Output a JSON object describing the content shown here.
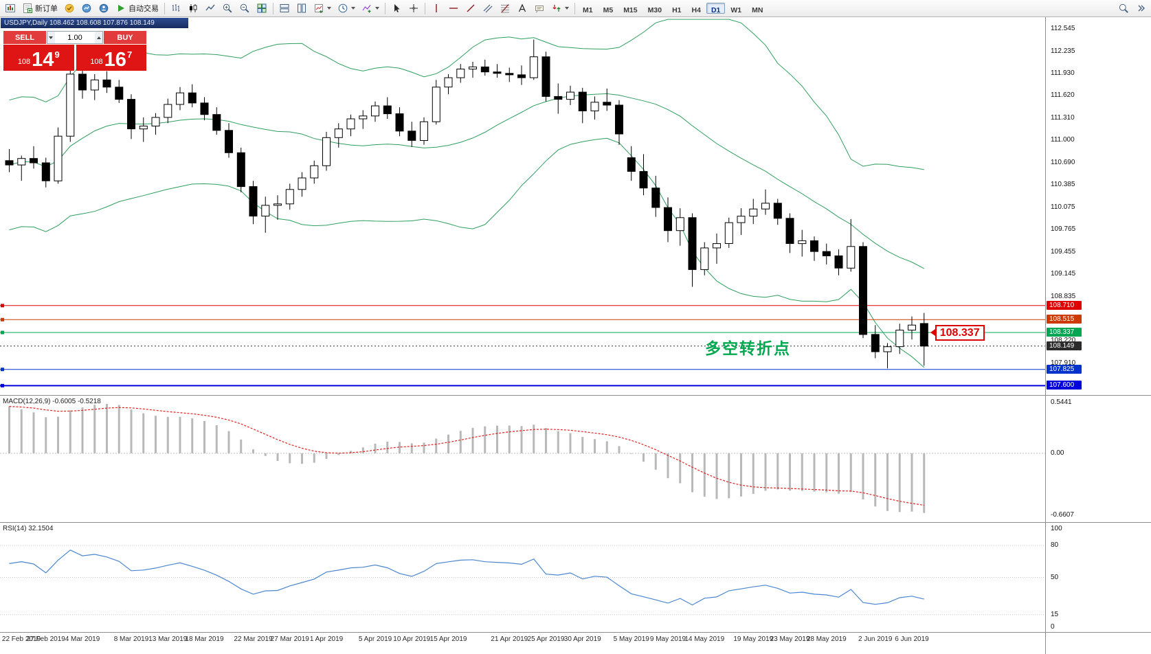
{
  "toolbar": {
    "new_order": "新订单",
    "autotrade": "自动交易",
    "timeframes": [
      "M1",
      "M5",
      "M15",
      "M30",
      "H1",
      "H4",
      "D1",
      "W1",
      "MN"
    ],
    "active_timeframe": "D1"
  },
  "chart": {
    "title_bar": "USDJPY,Daily  108.462 108.608 107.876 108.149"
  },
  "trade_panel": {
    "sell_label": "SELL",
    "buy_label": "BUY",
    "volume": "1.00",
    "sell_price_small": "108",
    "sell_price_big": "14",
    "sell_price_sup": "9",
    "buy_price_small": "108",
    "buy_price_big": "16",
    "buy_price_sup": "7"
  },
  "annotations": {
    "turning_point": "多空转折点",
    "price_callout": "108.337"
  },
  "panels": {
    "macd": "MACD(12,26,9) -0.6005 -0.5218",
    "rsi": "RSI(14) 32.1504"
  },
  "chart_data": {
    "type": "candlestick",
    "symbol": "USDJPY",
    "period": "Daily",
    "quote": {
      "open": 108.462,
      "high": 108.608,
      "low": 107.876,
      "close": 108.149
    },
    "price_range": [
      107.47,
      112.7
    ],
    "price_axis_ticks": [
      "112.545",
      "112.235",
      "111.930",
      "111.620",
      "111.310",
      "111.000",
      "110.690",
      "110.385",
      "110.075",
      "109.765",
      "109.455",
      "109.145",
      "108.835",
      "108.220",
      "107.910"
    ],
    "levels": [
      {
        "price": 108.71,
        "label": "108.710",
        "color": "#e00000",
        "style": "solid",
        "width": 1
      },
      {
        "price": 108.515,
        "label": "108.515",
        "color": "#cc3a00",
        "style": "solid",
        "width": 1
      },
      {
        "price": 108.337,
        "label": "108.337",
        "color": "#00a651",
        "style": "solid",
        "width": 1
      },
      {
        "price": 108.149,
        "label": "108.149",
        "color": "#2b2b2b",
        "style": "dotted",
        "width": 1,
        "current": true
      },
      {
        "price": 107.825,
        "label": "107.825",
        "color": "#0033cc",
        "style": "solid",
        "width": 1
      },
      {
        "price": 107.6,
        "label": "107.600",
        "color": "#0000dd",
        "style": "solid",
        "width": 2
      }
    ],
    "bollinger": {
      "period": 20,
      "deviation": 2,
      "color": "#2e9e5e"
    },
    "macd": {
      "params": "12,26,9",
      "value": -0.6005,
      "signal": -0.5218,
      "axis": [
        "0.5441",
        "0.00",
        "-0.6607"
      ],
      "histogram_color": "#b8b8b8",
      "signal_color": "#e02020"
    },
    "rsi": {
      "period": 14,
      "value": 32.1504,
      "axis": [
        "100",
        "80",
        "50",
        "15",
        "0"
      ],
      "levels": [
        80,
        50,
        15
      ],
      "color": "#4a86d0"
    },
    "time_labels": [
      {
        "text": "22 Feb 2019",
        "i": 0
      },
      {
        "text": "27 Feb 2019",
        "i": 3
      },
      {
        "text": "4 Mar 2019",
        "i": 6
      },
      {
        "text": "8 Mar 2019",
        "i": 10
      },
      {
        "text": "13 Mar 2019",
        "i": 13
      },
      {
        "text": "18 Mar 2019",
        "i": 16
      },
      {
        "text": "22 Mar 2019",
        "i": 20
      },
      {
        "text": "27 Mar 2019",
        "i": 23
      },
      {
        "text": "1 Apr 2019",
        "i": 26
      },
      {
        "text": "5 Apr 2019",
        "i": 30
      },
      {
        "text": "10 Apr 2019",
        "i": 33
      },
      {
        "text": "15 Apr 2019",
        "i": 36
      },
      {
        "text": "21 Apr 2019",
        "i": 41
      },
      {
        "text": "25 Apr 2019",
        "i": 44
      },
      {
        "text": "30 Apr 2019",
        "i": 47
      },
      {
        "text": "5 May 2019",
        "i": 51
      },
      {
        "text": "9 May 2019",
        "i": 54
      },
      {
        "text": "14 May 2019",
        "i": 57
      },
      {
        "text": "19 May 2019",
        "i": 61
      },
      {
        "text": "23 May 2019",
        "i": 64
      },
      {
        "text": "28 May 2019",
        "i": 67
      },
      {
        "text": "2 Jun 2019",
        "i": 71
      },
      {
        "text": "6 Jun 2019",
        "i": 74
      }
    ],
    "ohlc": [
      [
        110.72,
        110.88,
        110.56,
        110.66
      ],
      [
        110.66,
        110.79,
        110.44,
        110.75
      ],
      [
        110.75,
        110.92,
        110.61,
        110.69
      ],
      [
        110.69,
        110.76,
        110.35,
        110.44
      ],
      [
        110.44,
        111.18,
        110.4,
        111.06
      ],
      [
        111.06,
        112.08,
        110.98,
        111.92
      ],
      [
        111.92,
        112.1,
        111.58,
        111.7
      ],
      [
        111.7,
        111.92,
        111.56,
        111.84
      ],
      [
        111.84,
        111.96,
        111.66,
        111.74
      ],
      [
        111.74,
        111.84,
        111.52,
        111.57
      ],
      [
        111.57,
        111.64,
        111.02,
        111.16
      ],
      [
        111.16,
        111.32,
        110.98,
        111.2
      ],
      [
        111.2,
        111.38,
        111.08,
        111.32
      ],
      [
        111.32,
        111.58,
        111.24,
        111.5
      ],
      [
        111.5,
        111.74,
        111.42,
        111.66
      ],
      [
        111.66,
        111.78,
        111.46,
        111.52
      ],
      [
        111.52,
        111.6,
        111.28,
        111.36
      ],
      [
        111.36,
        111.46,
        111.08,
        111.14
      ],
      [
        111.14,
        111.24,
        110.76,
        110.83
      ],
      [
        110.83,
        110.9,
        110.28,
        110.36
      ],
      [
        110.36,
        110.44,
        109.84,
        109.95
      ],
      [
        109.95,
        110.22,
        109.72,
        110.1
      ],
      [
        110.1,
        110.24,
        109.9,
        110.12
      ],
      [
        110.12,
        110.4,
        110.04,
        110.32
      ],
      [
        110.32,
        110.56,
        110.22,
        110.48
      ],
      [
        110.48,
        110.72,
        110.4,
        110.65
      ],
      [
        110.65,
        111.12,
        110.58,
        111.04
      ],
      [
        111.04,
        111.24,
        110.9,
        111.16
      ],
      [
        111.16,
        111.36,
        111.06,
        111.3
      ],
      [
        111.3,
        111.42,
        111.16,
        111.34
      ],
      [
        111.34,
        111.54,
        111.26,
        111.48
      ],
      [
        111.48,
        111.6,
        111.3,
        111.37
      ],
      [
        111.37,
        111.46,
        111.06,
        111.13
      ],
      [
        111.13,
        111.26,
        110.91,
        111.0
      ],
      [
        111.0,
        111.32,
        110.94,
        111.26
      ],
      [
        111.26,
        111.84,
        111.22,
        111.74
      ],
      [
        111.74,
        111.92,
        111.64,
        111.87
      ],
      [
        111.87,
        112.06,
        111.8,
        111.99
      ],
      [
        111.99,
        112.09,
        111.87,
        112.02
      ],
      [
        112.02,
        112.12,
        111.9,
        111.95
      ],
      [
        111.95,
        112.06,
        111.87,
        111.93
      ],
      [
        111.93,
        112.01,
        111.81,
        111.91
      ],
      [
        111.91,
        112.04,
        111.77,
        111.87
      ],
      [
        111.87,
        112.4,
        111.84,
        112.16
      ],
      [
        112.16,
        112.23,
        111.54,
        111.61
      ],
      [
        111.61,
        111.79,
        111.37,
        111.57
      ],
      [
        111.57,
        111.76,
        111.49,
        111.67
      ],
      [
        111.67,
        111.73,
        111.24,
        111.41
      ],
      [
        111.41,
        111.61,
        111.29,
        111.53
      ],
      [
        111.53,
        111.72,
        111.41,
        111.49
      ],
      [
        111.49,
        111.56,
        110.94,
        111.09
      ],
      [
        110.76,
        110.92,
        110.44,
        110.57
      ],
      [
        110.57,
        110.81,
        110.24,
        110.34
      ],
      [
        110.34,
        110.51,
        109.94,
        110.07
      ],
      [
        110.07,
        110.21,
        109.59,
        109.75
      ],
      [
        109.75,
        110.06,
        109.54,
        109.93
      ],
      [
        109.93,
        109.99,
        108.97,
        109.21
      ],
      [
        109.21,
        109.59,
        109.13,
        109.51
      ],
      [
        109.51,
        109.71,
        109.29,
        109.57
      ],
      [
        109.57,
        109.93,
        109.51,
        109.86
      ],
      [
        109.86,
        110.06,
        109.69,
        109.95
      ],
      [
        109.95,
        110.19,
        109.84,
        110.05
      ],
      [
        110.05,
        110.32,
        109.97,
        110.13
      ],
      [
        110.13,
        110.19,
        109.83,
        109.92
      ],
      [
        109.92,
        109.99,
        109.44,
        109.57
      ],
      [
        109.57,
        109.76,
        109.39,
        109.61
      ],
      [
        109.61,
        109.67,
        109.33,
        109.46
      ],
      [
        109.46,
        109.57,
        109.28,
        109.4
      ],
      [
        109.4,
        109.49,
        109.13,
        109.23
      ],
      [
        109.23,
        109.91,
        109.18,
        109.53
      ],
      [
        109.53,
        109.59,
        108.26,
        108.31
      ],
      [
        108.31,
        108.44,
        107.98,
        108.07
      ],
      [
        108.07,
        108.19,
        107.84,
        108.14
      ],
      [
        108.14,
        108.46,
        108.04,
        108.37
      ],
      [
        108.37,
        108.56,
        108.24,
        108.44
      ],
      [
        108.462,
        108.608,
        107.876,
        108.149
      ]
    ]
  }
}
